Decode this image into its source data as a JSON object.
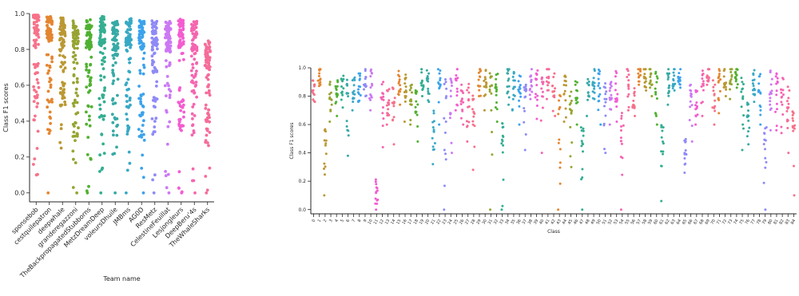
{
  "chart_data": [
    {
      "type": "scatter",
      "plot_style": "strip",
      "xlabel": "Team name",
      "ylabel": "Class F1 scores",
      "ylim": [
        -0.05,
        1.0
      ],
      "yticks": [
        "0.0",
        "0.2",
        "0.4",
        "0.6",
        "0.8",
        "1.0"
      ],
      "grid": false,
      "categories": [
        "sponsebob",
        "cestquilepatron",
        "deepwhale",
        "granderegazzoni",
        "TheBackpropagatedStubborns",
        "MetzDreamDeep",
        "voleursDhuile",
        "JMBms",
        "AG0D",
        "ResMetz",
        "CelestineFeuillat",
        "Lesjongleurs",
        "DeepBeru'4s",
        "TheWhaleSharks"
      ],
      "colors": [
        "#f77189",
        "#e48631",
        "#bb9832",
        "#97a431",
        "#50b131",
        "#34ae91",
        "#37aaa6",
        "#38a9c5",
        "#3ba3ec",
        "#8f8af7",
        "#cc79f4",
        "#f45cd1",
        "#f565b0",
        "#f66c99"
      ],
      "distribution": {
        "points_per_category": 85,
        "median": [
          0.9,
          0.87,
          0.86,
          0.85,
          0.85,
          0.87,
          0.84,
          0.86,
          0.85,
          0.85,
          0.84,
          0.86,
          0.84,
          0.73
        ],
        "min": [
          0.1,
          0.0,
          0.25,
          0.0,
          0.0,
          0.0,
          0.0,
          0.0,
          0.0,
          0.0,
          0.0,
          0.0,
          0.0,
          0.0
        ]
      }
    },
    {
      "type": "scatter",
      "plot_style": "strip",
      "xlabel": "Class",
      "ylabel": "Class F1 scores",
      "ylim": [
        -0.03,
        1.0
      ],
      "yticks": [
        "0.0",
        "0.2",
        "0.4",
        "0.6",
        "0.8",
        "1.0"
      ],
      "grid": false,
      "categories": [
        "0",
        "1",
        "2",
        "3",
        "4",
        "5",
        "6",
        "7",
        "8",
        "9",
        "10",
        "11",
        "12",
        "13",
        "14",
        "15",
        "16",
        "17",
        "18",
        "19",
        "20",
        "21",
        "22",
        "23",
        "24",
        "25",
        "26",
        "27",
        "28",
        "29",
        "30",
        "31",
        "32",
        "33",
        "34",
        "35",
        "36",
        "37",
        "38",
        "39",
        "40",
        "41",
        "42",
        "43",
        "44",
        "45",
        "46",
        "47",
        "48",
        "49",
        "50",
        "51",
        "52",
        "53",
        "54",
        "55",
        "56",
        "57",
        "58",
        "59",
        "60",
        "61",
        "62",
        "63",
        "64",
        "65",
        "66",
        "67",
        "68",
        "69",
        "70",
        "71",
        "72",
        "73",
        "74",
        "75",
        "76",
        "77",
        "78",
        "79",
        "80",
        "81",
        "82",
        "83",
        "84"
      ],
      "colors": [
        "#f77189",
        "#e48631",
        "#bb9832",
        "#97a431",
        "#50b131",
        "#34ae91",
        "#37aaa6",
        "#38a9c5",
        "#3ba3ec",
        "#8f8af7",
        "#cc79f4",
        "#f45cd1",
        "#f565b0",
        "#f66c99"
      ],
      "distribution": {
        "points_per_category": 14,
        "median": [
          0.8,
          0.92,
          0.48,
          0.8,
          0.82,
          0.84,
          0.8,
          0.84,
          0.88,
          0.9,
          0.88,
          0.1,
          0.82,
          0.76,
          0.78,
          0.86,
          0.84,
          0.8,
          0.76,
          0.92,
          0.88,
          0.6,
          0.88,
          0.82,
          0.84,
          0.92,
          0.8,
          0.78,
          0.7,
          0.94,
          0.9,
          0.86,
          0.84,
          0.5,
          0.9,
          0.88,
          0.86,
          0.8,
          0.92,
          0.88,
          0.82,
          0.94,
          0.88,
          0.72,
          0.86,
          0.72,
          0.8,
          0.5,
          0.84,
          0.9,
          0.88,
          0.78,
          0.82,
          0.86,
          0.58,
          0.92,
          0.74,
          0.96,
          0.92,
          0.92,
          0.86,
          0.5,
          0.88,
          0.92,
          0.94,
          0.4,
          0.8,
          0.76,
          0.9,
          0.94,
          0.8,
          0.92,
          0.9,
          0.92,
          0.94,
          0.82,
          0.66,
          0.88,
          0.86,
          0.5,
          0.9,
          0.86,
          0.84,
          0.76,
          0.6
        ],
        "min": [
          0.76,
          0.88,
          0.1,
          0.62,
          0.66,
          0.72,
          0.38,
          0.7,
          0.76,
          0.8,
          0.7,
          0.0,
          0.44,
          0.6,
          0.46,
          0.74,
          0.62,
          0.6,
          0.48,
          0.8,
          0.76,
          0.32,
          0.6,
          0.0,
          0.4,
          0.7,
          0.6,
          0.48,
          0.28,
          0.8,
          0.7,
          0.0,
          0.62,
          0.0,
          0.74,
          0.7,
          0.6,
          0.42,
          0.78,
          0.64,
          0.4,
          0.78,
          0.66,
          0.0,
          0.62,
          0.3,
          0.6,
          0.0,
          0.66,
          0.78,
          0.6,
          0.4,
          0.6,
          0.62,
          0.0,
          0.7,
          0.66,
          0.88,
          0.84,
          0.8,
          0.6,
          0.06,
          0.74,
          0.84,
          0.86,
          0.26,
          0.48,
          0.6,
          0.66,
          0.88,
          0.6,
          0.68,
          0.8,
          0.78,
          0.86,
          0.42,
          0.46,
          0.76,
          0.6,
          0.0,
          0.56,
          0.56,
          0.54,
          0.4,
          0.1
        ]
      }
    }
  ]
}
